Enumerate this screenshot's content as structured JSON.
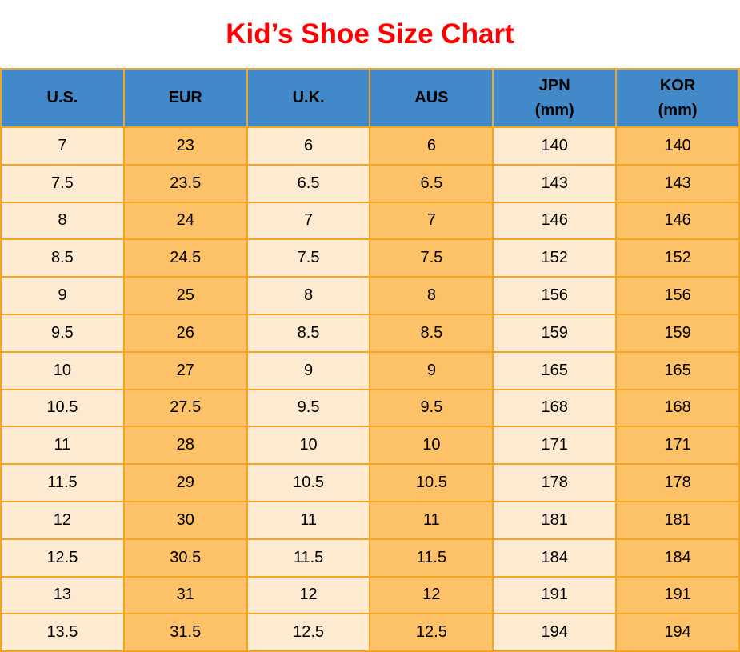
{
  "chart_data": {
    "type": "table",
    "title": "Kid’s Shoe Size Chart",
    "columns": [
      {
        "label": "U.S.",
        "unit": ""
      },
      {
        "label": "EUR",
        "unit": ""
      },
      {
        "label": "U.K.",
        "unit": ""
      },
      {
        "label": "AUS",
        "unit": ""
      },
      {
        "label": "JPN",
        "unit": "(mm)"
      },
      {
        "label": "KOR",
        "unit": "(mm)"
      }
    ],
    "rows": [
      [
        "7",
        "23",
        "6",
        "6",
        "140",
        "140"
      ],
      [
        "7.5",
        "23.5",
        "6.5",
        "6.5",
        "143",
        "143"
      ],
      [
        "8",
        "24",
        "7",
        "7",
        "146",
        "146"
      ],
      [
        "8.5",
        "24.5",
        "7.5",
        "7.5",
        "152",
        "152"
      ],
      [
        "9",
        "25",
        "8",
        "8",
        "156",
        "156"
      ],
      [
        "9.5",
        "26",
        "8.5",
        "8.5",
        "159",
        "159"
      ],
      [
        "10",
        "27",
        "9",
        "9",
        "165",
        "165"
      ],
      [
        "10.5",
        "27.5",
        "9.5",
        "9.5",
        "168",
        "168"
      ],
      [
        "11",
        "28",
        "10",
        "10",
        "171",
        "171"
      ],
      [
        "11.5",
        "29",
        "10.5",
        "10.5",
        "178",
        "178"
      ],
      [
        "12",
        "30",
        "11",
        "11",
        "181",
        "181"
      ],
      [
        "12.5",
        "30.5",
        "11.5",
        "11.5",
        "184",
        "184"
      ],
      [
        "13",
        "31",
        "12",
        "12",
        "191",
        "191"
      ],
      [
        "13.5",
        "31.5",
        "12.5",
        "12.5",
        "194",
        "194"
      ]
    ],
    "colors": {
      "title": "#FE0000",
      "header_bg": "#4189C8",
      "column_cream": "#FDEAD1",
      "column_orange": "#FDC268",
      "grid_border": "#F6A41C",
      "text": "#000000"
    },
    "layout_hints": {
      "header_text_lines": "label over unit, both centered",
      "column_fill_pattern": "columns alternate cream/orange starting cream",
      "grid": "on"
    }
  }
}
